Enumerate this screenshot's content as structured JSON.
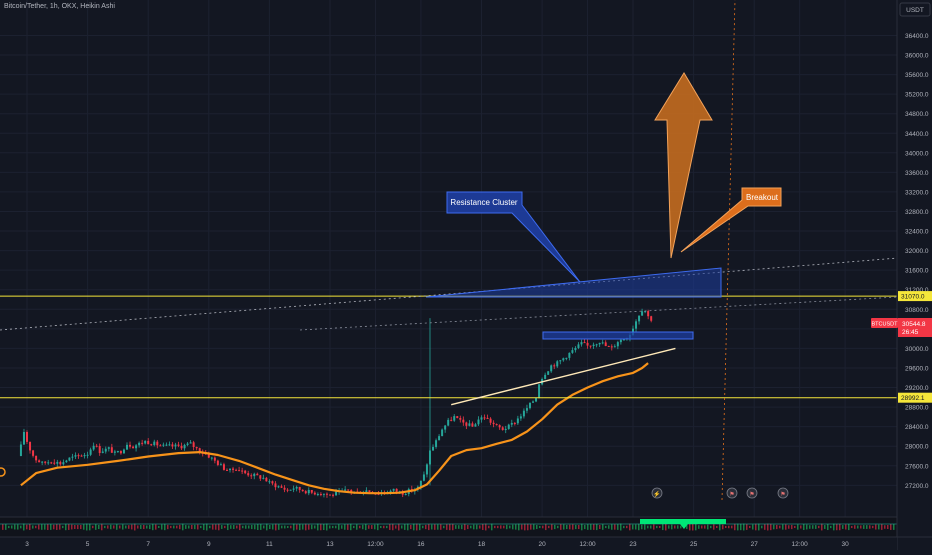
{
  "chart_data": {
    "type": "candlestick",
    "title": "Bitcoin/Tether, 1h, OKX, Heikin Ashi",
    "currency_badge": "USDT",
    "price_axis": {
      "ylim": [
        26900,
        36900
      ],
      "ticks": [
        "36400.0",
        "36000.0",
        "35600.0",
        "35200.0",
        "34800.0",
        "34400.0",
        "34000.0",
        "33600.0",
        "33200.0",
        "32800.0",
        "32400.0",
        "32000.0",
        "31600.0",
        "31200.0",
        "30800.0",
        "30400.0",
        "30000.0",
        "29600.0",
        "29200.0",
        "28800.0",
        "28400.0",
        "28000.0",
        "27600.0",
        "27200.0"
      ]
    },
    "time_axis": {
      "ticks": [
        {
          "label": "3",
          "t": 0
        },
        {
          "label": "5",
          "t": 2
        },
        {
          "label": "7",
          "t": 4
        },
        {
          "label": "9",
          "t": 6
        },
        {
          "label": "11",
          "t": 8
        },
        {
          "label": "13",
          "t": 10
        },
        {
          "label": "12:00",
          "t": 11.5
        },
        {
          "label": "16",
          "t": 13
        },
        {
          "label": "18",
          "t": 15
        },
        {
          "label": "20",
          "t": 17
        },
        {
          "label": "12:00",
          "t": 18.5
        },
        {
          "label": "23",
          "t": 20
        },
        {
          "label": "25",
          "t": 22
        },
        {
          "label": "27",
          "t": 24
        },
        {
          "label": "12:00",
          "t": 25.5
        },
        {
          "label": "30",
          "t": 27
        }
      ]
    },
    "horizontal_levels": [
      {
        "price": 31070.0,
        "label": "31070.0",
        "color": "#f5e63a"
      },
      {
        "price": 28992.1,
        "label": "28992.1",
        "color": "#f5e63a"
      }
    ],
    "current_price": {
      "symbol_tag": "BTCUSDT",
      "value": "30544.8",
      "countdown": "26:45",
      "color": "#f23645"
    },
    "price_path": [
      [
        -0.2,
        27800
      ],
      [
        -0.05,
        28100
      ],
      [
        0.0,
        28300
      ],
      [
        0.15,
        28000
      ],
      [
        0.35,
        27750
      ],
      [
        0.6,
        27650
      ],
      [
        0.9,
        27700
      ],
      [
        1.2,
        27650
      ],
      [
        1.5,
        27750
      ],
      [
        1.8,
        27800
      ],
      [
        2.1,
        27850
      ],
      [
        2.3,
        28050
      ],
      [
        2.5,
        27900
      ],
      [
        2.8,
        27950
      ],
      [
        3.0,
        27850
      ],
      [
        3.2,
        27900
      ],
      [
        3.4,
        28050
      ],
      [
        3.6,
        28000
      ],
      [
        3.8,
        28050
      ],
      [
        4.0,
        28100
      ],
      [
        4.3,
        28050
      ],
      [
        4.6,
        28000
      ],
      [
        4.9,
        28000
      ],
      [
        5.2,
        28000
      ],
      [
        5.5,
        28050
      ],
      [
        5.8,
        27900
      ],
      [
        6.0,
        27850
      ],
      [
        6.2,
        27750
      ],
      [
        6.4,
        27650
      ],
      [
        6.6,
        27550
      ],
      [
        6.8,
        27500
      ],
      [
        7.0,
        27550
      ],
      [
        7.3,
        27450
      ],
      [
        7.6,
        27400
      ],
      [
        7.9,
        27350
      ],
      [
        8.1,
        27250
      ],
      [
        8.3,
        27200
      ],
      [
        8.5,
        27150
      ],
      [
        8.7,
        27100
      ],
      [
        8.9,
        27150
      ],
      [
        9.2,
        27100
      ],
      [
        9.5,
        27050
      ],
      [
        9.8,
        27050
      ],
      [
        10.1,
        27000
      ],
      [
        10.4,
        27050
      ],
      [
        10.7,
        27100
      ],
      [
        11.0,
        27050
      ],
      [
        11.3,
        27100
      ],
      [
        11.6,
        27050
      ],
      [
        11.9,
        27050
      ],
      [
        12.2,
        27100
      ],
      [
        12.5,
        27050
      ],
      [
        12.8,
        27100
      ],
      [
        13.0,
        27150
      ],
      [
        13.2,
        27400
      ],
      [
        13.4,
        27900
      ],
      [
        13.6,
        28100
      ],
      [
        13.8,
        28350
      ],
      [
        14.0,
        28500
      ],
      [
        14.2,
        28600
      ],
      [
        14.4,
        28500
      ],
      [
        14.6,
        28450
      ],
      [
        14.8,
        28400
      ],
      [
        15.0,
        28550
      ],
      [
        15.2,
        28600
      ],
      [
        15.4,
        28500
      ],
      [
        15.6,
        28400
      ],
      [
        15.8,
        28350
      ],
      [
        16.0,
        28400
      ],
      [
        16.2,
        28500
      ],
      [
        16.5,
        28700
      ],
      [
        16.7,
        28850
      ],
      [
        16.9,
        29000
      ],
      [
        17.0,
        29300
      ],
      [
        17.2,
        29500
      ],
      [
        17.4,
        29650
      ],
      [
        17.6,
        29700
      ],
      [
        17.8,
        29800
      ],
      [
        18.0,
        29900
      ],
      [
        18.2,
        30000
      ],
      [
        18.4,
        30100
      ],
      [
        18.6,
        30050
      ],
      [
        18.8,
        30100
      ],
      [
        19.0,
        30150
      ],
      [
        19.2,
        30050
      ],
      [
        19.4,
        30000
      ],
      [
        19.6,
        30150
      ],
      [
        19.8,
        30200
      ],
      [
        20.0,
        30300
      ],
      [
        20.15,
        30500
      ],
      [
        20.3,
        30700
      ],
      [
        20.45,
        30850
      ],
      [
        20.55,
        30700
      ],
      [
        20.65,
        30600
      ]
    ],
    "moving_average": [
      [
        -0.2,
        27200
      ],
      [
        0.3,
        27450
      ],
      [
        1.0,
        27560
      ],
      [
        2.0,
        27620
      ],
      [
        3.0,
        27700
      ],
      [
        4.0,
        27790
      ],
      [
        5.0,
        27860
      ],
      [
        5.7,
        27880
      ],
      [
        6.3,
        27820
      ],
      [
        7.0,
        27700
      ],
      [
        7.6,
        27560
      ],
      [
        8.2,
        27420
      ],
      [
        8.8,
        27300
      ],
      [
        9.3,
        27200
      ],
      [
        9.8,
        27130
      ],
      [
        10.3,
        27080
      ],
      [
        10.8,
        27050
      ],
      [
        11.3,
        27040
      ],
      [
        11.8,
        27040
      ],
      [
        12.3,
        27050
      ],
      [
        12.8,
        27100
      ],
      [
        13.2,
        27220
      ],
      [
        13.6,
        27500
      ],
      [
        14.0,
        27800
      ],
      [
        14.5,
        27920
      ],
      [
        15.0,
        27960
      ],
      [
        15.5,
        28050
      ],
      [
        16.0,
        28130
      ],
      [
        16.5,
        28300
      ],
      [
        17.0,
        28550
      ],
      [
        17.5,
        28850
      ],
      [
        18.0,
        29050
      ],
      [
        18.5,
        29200
      ],
      [
        19.0,
        29330
      ],
      [
        19.5,
        29430
      ],
      [
        20.0,
        29500
      ],
      [
        20.3,
        29600
      ],
      [
        20.5,
        29700
      ]
    ],
    "trendlines": [
      {
        "name": "lower-trendline",
        "from": [
          14.0,
          28850
        ],
        "to": [
          21.4,
          30000
        ],
        "color": "#ffe9b8"
      }
    ],
    "annotations": [
      {
        "label": "Resistance Cluster",
        "color": "#1e3ea0"
      },
      {
        "label": "Breakout",
        "color": "#e8731c"
      }
    ],
    "event_icons": [
      "flash-icon",
      "flag-icon",
      "flag-icon",
      "flag-icon"
    ],
    "colors": {
      "background": "#131722",
      "grid": "#1c2130",
      "up": "#26a69a",
      "down": "#f23645",
      "ma": "#f7931a",
      "axis_text": "#b2b5be",
      "resistance_fill": "#1e3ea0",
      "arrow_fill": "#c46c1f"
    },
    "grid": true
  }
}
